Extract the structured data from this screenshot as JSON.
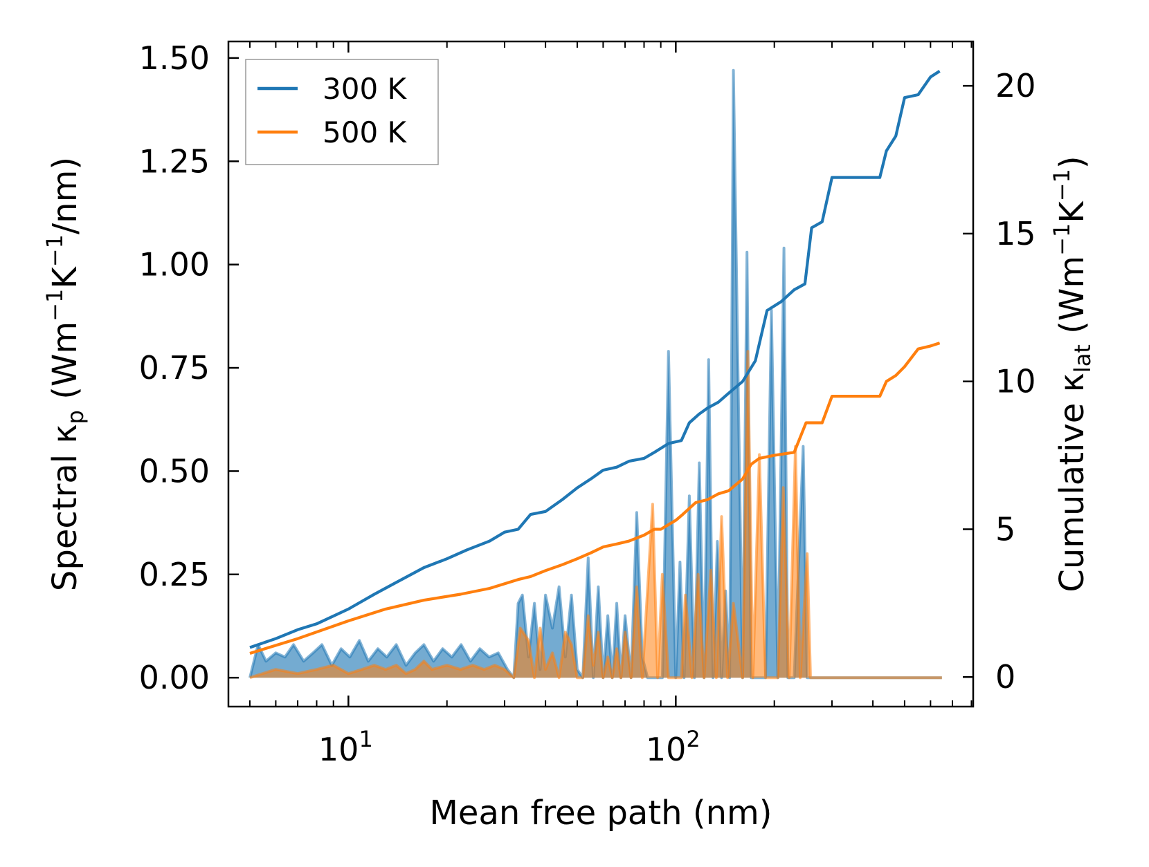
{
  "chart_data": {
    "type": "line",
    "xscale": "log",
    "xlabel": "Mean free path (nm)",
    "ylabel_left": "Spectral κp (Wm−1K−1/nm)",
    "ylabel_right": "Cumulative κlat (Wm−1K−1)",
    "xlim": [
      4.3,
      810
    ],
    "ylim_left": [
      -0.07,
      1.54
    ],
    "ylim_right": [
      -1.0,
      21.5
    ],
    "x_major_ticks": [
      10,
      100
    ],
    "x_tick_labels": [
      "10",
      "10"
    ],
    "x_tick_exponents": [
      "1",
      "2"
    ],
    "y_left_ticks": [
      0.0,
      0.25,
      0.5,
      0.75,
      1.0,
      1.25,
      1.5
    ],
    "y_left_tick_labels": [
      "0.00",
      "0.25",
      "0.50",
      "0.75",
      "1.00",
      "1.25",
      "1.50"
    ],
    "y_right_ticks": [
      0,
      5,
      10,
      15,
      20
    ],
    "y_right_tick_labels": [
      "0",
      "5",
      "10",
      "15",
      "20"
    ],
    "legend": {
      "location": "upper-left",
      "entries": [
        "300 K",
        "500 K"
      ]
    },
    "colors": {
      "300K": "#1f77b4",
      "500K": "#ff7f0e",
      "fill_blend": "#a8896b",
      "axis": "#000000"
    },
    "series": [
      {
        "name": "300 K",
        "cumulative": {
          "x": [
            5.0,
            6,
            7,
            8,
            10,
            12,
            14,
            17,
            20,
            23,
            27,
            30,
            33,
            36,
            40,
            45,
            50,
            55,
            60,
            66,
            72,
            80,
            86,
            95,
            104,
            110,
            118,
            125,
            135,
            145,
            160,
            175,
            190,
            210,
            230,
            248,
            260,
            280,
            300,
            350,
            420,
            440,
            470,
            500,
            550,
            600,
            640
          ],
          "y": [
            1.0,
            1.3,
            1.6,
            1.8,
            2.3,
            2.8,
            3.2,
            3.7,
            4.0,
            4.3,
            4.6,
            4.9,
            5.0,
            5.5,
            5.6,
            6.0,
            6.4,
            6.7,
            7.0,
            7.1,
            7.3,
            7.4,
            7.6,
            7.9,
            8.0,
            8.6,
            8.9,
            9.1,
            9.3,
            9.6,
            10.0,
            10.7,
            12.4,
            12.7,
            13.1,
            13.3,
            15.2,
            15.4,
            16.9,
            16.9,
            16.9,
            17.8,
            18.3,
            19.6,
            19.7,
            20.3,
            20.5
          ]
        },
        "spectral": {
          "x": [
            5.0,
            5.3,
            5.6,
            6.0,
            6.4,
            6.8,
            7.3,
            7.8,
            8.3,
            8.9,
            9.5,
            10.1,
            10.8,
            11.5,
            12.3,
            13.1,
            14.0,
            15.0,
            16.0,
            17.0,
            18.2,
            19.4,
            20.7,
            22.1,
            23.6,
            25.2,
            26.9,
            28.7,
            30.6,
            32.0,
            33.0,
            34.0,
            35.5,
            37.0,
            38.5,
            40.0,
            42.0,
            44.0,
            46.0,
            48.0,
            50.0,
            52.0,
            54.0,
            56.0,
            58.0,
            60.0,
            62.0,
            64.0,
            66.0,
            68.0,
            70.0,
            73.0,
            76.0,
            79.0,
            82.0,
            85.0,
            88.0,
            91.0,
            95.0,
            100.0,
            103.0,
            106.0,
            110.0,
            114.0,
            118.0,
            122.0,
            126.0,
            130.0,
            134.0,
            138.0,
            142.0,
            146.0,
            150.0,
            160.0,
            165.0,
            170.0,
            175.0,
            180.0,
            188.0,
            196.0,
            205.0,
            214.0,
            220.0,
            230.0,
            245.0,
            252.0,
            258.0,
            265.0,
            275.0,
            285.0,
            295.0,
            305.0,
            320.0,
            350.0,
            420.0,
            432.0,
            445.0,
            460.0,
            475.0,
            490.0,
            505.0,
            520.0,
            540.0,
            560.0,
            580.0,
            600.0,
            620.0,
            640.0,
            650.0
          ],
          "y": [
            0.0,
            0.08,
            0.04,
            0.06,
            0.05,
            0.08,
            0.04,
            0.06,
            0.08,
            0.03,
            0.07,
            0.05,
            0.09,
            0.04,
            0.07,
            0.05,
            0.08,
            0.03,
            0.06,
            0.08,
            0.04,
            0.07,
            0.05,
            0.08,
            0.04,
            0.07,
            0.05,
            0.06,
            0.02,
            0.0,
            0.18,
            0.2,
            0.05,
            0.18,
            0.02,
            0.2,
            0.12,
            0.22,
            0.05,
            0.2,
            0.02,
            0.0,
            0.29,
            0.0,
            0.22,
            0.0,
            0.15,
            0.0,
            0.18,
            0.0,
            0.15,
            0.0,
            0.4,
            0.05,
            0.0,
            0.0,
            0.0,
            0.0,
            0.79,
            0.0,
            0.28,
            0.0,
            0.44,
            0.0,
            0.52,
            0.0,
            0.77,
            0.0,
            0.33,
            0.0,
            0.21,
            0.0,
            1.47,
            0.0,
            1.03,
            0.0,
            0.0,
            0.0,
            0.0,
            0.89,
            0.0,
            1.04,
            0.0,
            0.0,
            0.56,
            0.0,
            0.0,
            0.0,
            0.0,
            0.0,
            0.0,
            0.0,
            0.0,
            0.0,
            0.0,
            0.0,
            0.0,
            0.0,
            0.0,
            0.0,
            0.0,
            0.0,
            0.0,
            0.0,
            0.0,
            0.0,
            0.0,
            0.0,
            0.0
          ]
        }
      },
      {
        "name": "500 K",
        "cumulative": {
          "x": [
            5.0,
            7,
            10,
            13,
            17,
            22,
            27,
            33,
            36,
            40,
            45,
            50,
            55,
            60,
            66,
            72,
            80,
            86,
            90,
            100,
            105,
            115,
            125,
            135,
            145,
            160,
            170,
            180,
            200,
            230,
            250,
            280,
            300,
            350,
            420,
            440,
            470,
            500,
            550,
            600,
            640
          ],
          "y": [
            0.8,
            1.3,
            1.9,
            2.3,
            2.6,
            2.8,
            3.0,
            3.3,
            3.4,
            3.6,
            3.8,
            4.0,
            4.2,
            4.4,
            4.5,
            4.6,
            4.8,
            5.0,
            5.0,
            5.3,
            5.5,
            5.9,
            6.0,
            6.2,
            6.3,
            6.7,
            7.2,
            7.4,
            7.5,
            7.6,
            8.6,
            8.6,
            9.5,
            9.5,
            9.5,
            10.0,
            10.2,
            10.5,
            11.1,
            11.2,
            11.3
          ]
        },
        "spectral": {
          "x": [
            5.0,
            6,
            7,
            8,
            9,
            10,
            11,
            12,
            13,
            14,
            15,
            16,
            17,
            18,
            20,
            22,
            24,
            26,
            28,
            30,
            32,
            33.5,
            35.5,
            37,
            38.5,
            40,
            42,
            44,
            46,
            48,
            50,
            52,
            54,
            56,
            58,
            60,
            62,
            64,
            66,
            68,
            70,
            73,
            76,
            79,
            85,
            88,
            91,
            95,
            100,
            104,
            107,
            112,
            117,
            122,
            128,
            133,
            138,
            144,
            150,
            160,
            166,
            172,
            180,
            188,
            196,
            205,
            213,
            222,
            232,
            240,
            252,
            258,
            266,
            275,
            285,
            295,
            305,
            320,
            350,
            400,
            420,
            440,
            460,
            475,
            490,
            505,
            520,
            540,
            560,
            580,
            600,
            620,
            640,
            650
          ],
          "y": [
            0.0,
            0.02,
            0.01,
            0.02,
            0.03,
            0.01,
            0.02,
            0.03,
            0.02,
            0.03,
            0.01,
            0.02,
            0.04,
            0.02,
            0.03,
            0.02,
            0.03,
            0.02,
            0.03,
            0.02,
            0.0,
            0.12,
            0.09,
            0.0,
            0.12,
            0.02,
            0.06,
            0.0,
            0.11,
            0.08,
            0.0,
            0.0,
            0.15,
            0.03,
            0.11,
            0.0,
            0.05,
            0.0,
            0.07,
            0.0,
            0.11,
            0.0,
            0.22,
            0.0,
            0.42,
            0.0,
            0.25,
            0.0,
            0.0,
            0.0,
            0.2,
            0.0,
            0.25,
            0.0,
            0.26,
            0.0,
            0.39,
            0.0,
            0.18,
            0.0,
            0.79,
            0.0,
            0.54,
            0.0,
            0.0,
            0.0,
            0.46,
            0.0,
            0.56,
            0.0,
            0.3,
            0.0,
            0.0,
            0.0,
            0.0,
            0.0,
            0.0,
            0.0,
            0.0,
            0.0,
            0.0,
            0.0,
            0.0,
            0.0,
            0.0,
            0.0,
            0.0,
            0.0,
            0.0,
            0.0,
            0.0,
            0.0,
            0.0,
            0.0
          ]
        }
      }
    ]
  }
}
